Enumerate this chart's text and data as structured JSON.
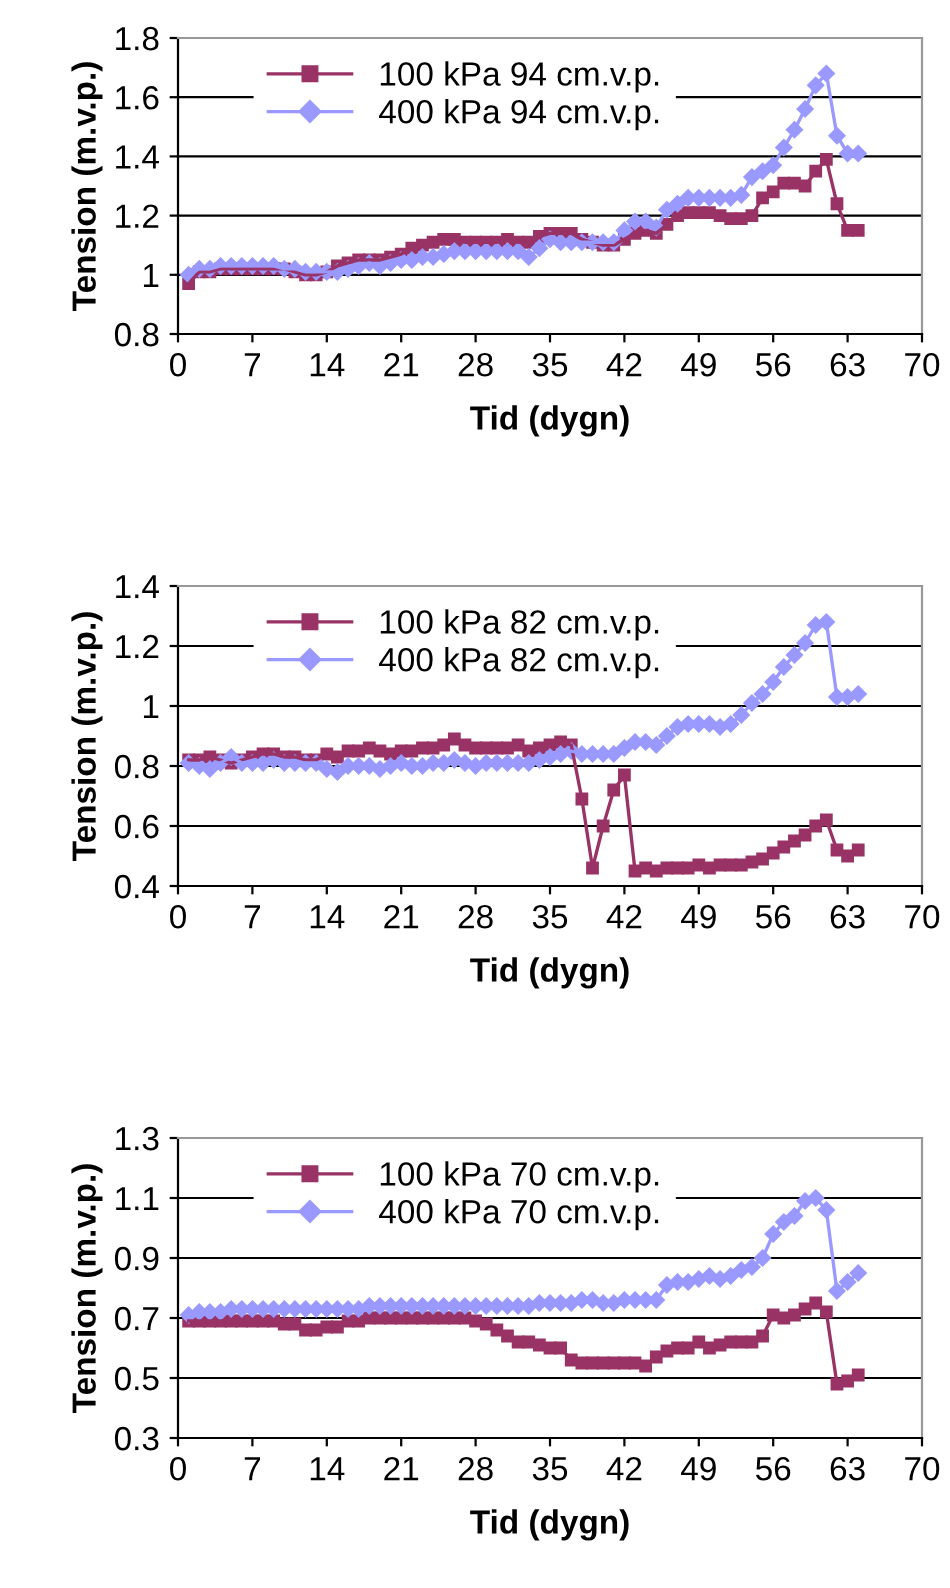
{
  "chart_data": [
    {
      "type": "line",
      "xlabel": "Tid (dygn)",
      "ylabel": "Tension (m.v.p.)",
      "xlim": [
        0,
        70
      ],
      "xticks": [
        0,
        7,
        14,
        21,
        28,
        35,
        42,
        49,
        56,
        63,
        70
      ],
      "ylim": [
        0.8,
        1.8
      ],
      "yticks": [
        {
          "value": 0.8,
          "label": "0.8"
        },
        {
          "value": 1,
          "label": "1"
        },
        {
          "value": 1.2,
          "label": "1.2"
        },
        {
          "value": 1.4,
          "label": "1.4"
        },
        {
          "value": 1.6,
          "label": "1.6"
        },
        {
          "value": 1.8,
          "label": "1.8"
        }
      ],
      "grid": "y",
      "legend": "top left",
      "x": [
        1,
        2,
        3,
        4,
        5,
        6,
        7,
        8,
        9,
        10,
        11,
        12,
        13,
        14,
        15,
        16,
        17,
        18,
        19,
        20,
        21,
        22,
        23,
        24,
        25,
        26,
        27,
        28,
        29,
        30,
        31,
        32,
        33,
        34,
        35,
        36,
        37,
        38,
        39,
        40,
        41,
        42,
        43,
        44,
        45,
        46,
        47,
        48,
        49,
        50,
        51,
        52,
        53,
        54,
        55,
        56,
        57,
        58,
        59,
        60,
        61,
        62,
        63,
        64
      ],
      "series": [
        {
          "name": "100 kPa 94 cm.v.p.",
          "color": "#993366",
          "marker": "square",
          "values": [
            0.97,
            1.01,
            1.01,
            1.02,
            1.02,
            1.02,
            1.02,
            1.02,
            1.02,
            1.02,
            1.01,
            1.0,
            1.0,
            1.01,
            1.03,
            1.04,
            1.05,
            1.05,
            1.05,
            1.06,
            1.07,
            1.09,
            1.1,
            1.11,
            1.12,
            1.12,
            1.11,
            1.11,
            1.11,
            1.11,
            1.12,
            1.11,
            1.11,
            1.13,
            1.14,
            1.14,
            1.14,
            1.12,
            1.11,
            1.1,
            1.1,
            1.12,
            1.14,
            1.15,
            1.14,
            1.17,
            1.2,
            1.21,
            1.21,
            1.21,
            1.2,
            1.19,
            1.19,
            1.2,
            1.26,
            1.28,
            1.31,
            1.31,
            1.3,
            1.35,
            1.39,
            1.24,
            1.15,
            1.15
          ]
        },
        {
          "name": "400 kPa 94 cm.v.p.",
          "color": "#9999ff",
          "marker": "diamond",
          "values": [
            1.0,
            1.02,
            1.02,
            1.03,
            1.03,
            1.03,
            1.03,
            1.03,
            1.03,
            1.02,
            1.02,
            1.01,
            1.01,
            1.01,
            1.01,
            1.02,
            1.03,
            1.04,
            1.03,
            1.04,
            1.05,
            1.05,
            1.06,
            1.06,
            1.07,
            1.08,
            1.08,
            1.08,
            1.08,
            1.08,
            1.08,
            1.08,
            1.06,
            1.09,
            1.12,
            1.11,
            1.11,
            1.11,
            1.11,
            1.11,
            1.11,
            1.15,
            1.18,
            1.18,
            1.16,
            1.22,
            1.24,
            1.26,
            1.26,
            1.26,
            1.26,
            1.26,
            1.27,
            1.33,
            1.35,
            1.37,
            1.43,
            1.49,
            1.56,
            1.64,
            1.68,
            1.47,
            1.41,
            1.41
          ]
        }
      ]
    },
    {
      "type": "line",
      "xlabel": "Tid (dygn)",
      "ylabel": "Tension (m.v.p.)",
      "xlim": [
        0,
        70
      ],
      "xticks": [
        0,
        7,
        14,
        21,
        28,
        35,
        42,
        49,
        56,
        63,
        70
      ],
      "ylim": [
        0.4,
        1.4
      ],
      "yticks": [
        0.4,
        0.6,
        0.8,
        {
          "value": 1,
          "label": "1"
        },
        1.2,
        1.4
      ],
      "grid": "y",
      "legend": "top left",
      "x": [
        1,
        2,
        3,
        4,
        5,
        6,
        7,
        8,
        9,
        10,
        11,
        12,
        13,
        14,
        15,
        16,
        17,
        18,
        19,
        20,
        21,
        22,
        23,
        24,
        25,
        26,
        27,
        28,
        29,
        30,
        31,
        32,
        33,
        34,
        35,
        36,
        37,
        38,
        39,
        40,
        41,
        42,
        43,
        44,
        45,
        46,
        47,
        48,
        49,
        50,
        51,
        52,
        53,
        54,
        55,
        56,
        57,
        58,
        59,
        60,
        61,
        62,
        63,
        64
      ],
      "series": [
        {
          "name": "100 kPa 82 cm.v.p.",
          "color": "#993366",
          "marker": "square",
          "values": [
            0.82,
            0.82,
            0.83,
            0.82,
            0.81,
            0.82,
            0.83,
            0.84,
            0.84,
            0.83,
            0.83,
            0.82,
            0.82,
            0.84,
            0.83,
            0.85,
            0.85,
            0.86,
            0.85,
            0.84,
            0.85,
            0.85,
            0.86,
            0.86,
            0.87,
            0.89,
            0.87,
            0.86,
            0.86,
            0.86,
            0.86,
            0.87,
            0.85,
            0.86,
            0.87,
            0.88,
            0.87,
            0.69,
            0.46,
            0.6,
            0.72,
            0.77,
            0.45,
            0.46,
            0.45,
            0.46,
            0.46,
            0.46,
            0.47,
            0.46,
            0.47,
            0.47,
            0.47,
            0.48,
            0.49,
            0.51,
            0.53,
            0.55,
            0.57,
            0.6,
            0.62,
            0.52,
            0.5,
            0.52
          ]
        },
        {
          "name": "400 kPa 82 cm.v.p.",
          "color": "#9999ff",
          "marker": "diamond",
          "values": [
            0.81,
            0.8,
            0.79,
            0.81,
            0.83,
            0.81,
            0.81,
            0.81,
            0.82,
            0.81,
            0.81,
            0.81,
            0.81,
            0.79,
            0.78,
            0.8,
            0.8,
            0.8,
            0.79,
            0.8,
            0.81,
            0.8,
            0.8,
            0.81,
            0.81,
            0.82,
            0.81,
            0.8,
            0.81,
            0.81,
            0.81,
            0.81,
            0.81,
            0.82,
            0.83,
            0.84,
            0.85,
            0.84,
            0.84,
            0.84,
            0.84,
            0.86,
            0.88,
            0.88,
            0.87,
            0.9,
            0.93,
            0.94,
            0.94,
            0.94,
            0.93,
            0.94,
            0.97,
            1.01,
            1.04,
            1.08,
            1.13,
            1.17,
            1.21,
            1.27,
            1.28,
            1.03,
            1.03,
            1.04
          ]
        }
      ]
    },
    {
      "type": "line",
      "xlabel": "Tid (dygn)",
      "ylabel": "Tension (m.v.p.)",
      "xlim": [
        0,
        70
      ],
      "xticks": [
        0,
        7,
        14,
        21,
        28,
        35,
        42,
        49,
        56,
        63,
        70
      ],
      "ylim": [
        0.3,
        1.3
      ],
      "yticks": [
        0.3,
        0.5,
        0.7,
        0.9,
        1.1,
        1.3
      ],
      "grid": "y",
      "legend": "top left",
      "x": [
        1,
        2,
        3,
        4,
        5,
        6,
        7,
        8,
        9,
        10,
        11,
        12,
        13,
        14,
        15,
        16,
        17,
        18,
        19,
        20,
        21,
        22,
        23,
        24,
        25,
        26,
        27,
        28,
        29,
        30,
        31,
        32,
        33,
        34,
        35,
        36,
        37,
        38,
        39,
        40,
        41,
        42,
        43,
        44,
        45,
        46,
        47,
        48,
        49,
        50,
        51,
        52,
        53,
        54,
        55,
        56,
        57,
        58,
        59,
        60,
        61,
        62,
        63,
        64
      ],
      "series": [
        {
          "name": "100 kPa 70 cm.v.p.",
          "color": "#993366",
          "marker": "square",
          "values": [
            0.69,
            0.69,
            0.69,
            0.69,
            0.69,
            0.69,
            0.69,
            0.69,
            0.69,
            0.68,
            0.68,
            0.66,
            0.66,
            0.67,
            0.67,
            0.69,
            0.69,
            0.7,
            0.7,
            0.7,
            0.7,
            0.7,
            0.7,
            0.7,
            0.7,
            0.7,
            0.7,
            0.69,
            0.68,
            0.66,
            0.64,
            0.62,
            0.62,
            0.61,
            0.6,
            0.6,
            0.56,
            0.55,
            0.55,
            0.55,
            0.55,
            0.55,
            0.55,
            0.54,
            0.57,
            0.59,
            0.6,
            0.6,
            0.62,
            0.6,
            0.61,
            0.62,
            0.62,
            0.62,
            0.64,
            0.71,
            0.7,
            0.71,
            0.73,
            0.75,
            0.72,
            0.48,
            0.49,
            0.51
          ]
        },
        {
          "name": "400 kPa 70 cm.v.p.",
          "color": "#9999ff",
          "marker": "diamond",
          "values": [
            0.71,
            0.72,
            0.72,
            0.72,
            0.73,
            0.73,
            0.73,
            0.73,
            0.73,
            0.73,
            0.73,
            0.73,
            0.73,
            0.73,
            0.73,
            0.73,
            0.73,
            0.74,
            0.74,
            0.74,
            0.74,
            0.74,
            0.74,
            0.74,
            0.74,
            0.74,
            0.74,
            0.74,
            0.74,
            0.74,
            0.74,
            0.74,
            0.74,
            0.75,
            0.75,
            0.75,
            0.75,
            0.76,
            0.76,
            0.75,
            0.75,
            0.76,
            0.76,
            0.76,
            0.76,
            0.81,
            0.82,
            0.82,
            0.83,
            0.84,
            0.83,
            0.84,
            0.86,
            0.87,
            0.9,
            0.98,
            1.02,
            1.04,
            1.09,
            1.1,
            1.06,
            0.79,
            0.82,
            0.85
          ]
        }
      ]
    }
  ]
}
